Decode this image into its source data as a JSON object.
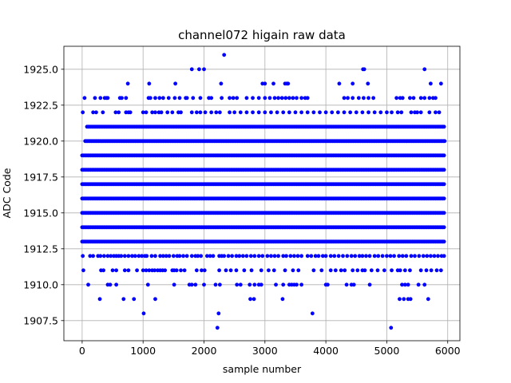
{
  "chart_data": {
    "type": "scatter",
    "title": "channel072 higain raw data",
    "xlabel": "sample number",
    "ylabel": "ADC Code",
    "xlim": [
      -300,
      6200
    ],
    "ylim": [
      1906.1,
      1926.6
    ],
    "xticks": [
      0,
      1000,
      2000,
      3000,
      4000,
      5000,
      6000
    ],
    "yticks": [
      1907.5,
      1910.0,
      1912.5,
      1915.0,
      1917.5,
      1920.0,
      1922.5,
      1925.0
    ],
    "xtick_labels": [
      "0",
      "1000",
      "2000",
      "3000",
      "4000",
      "5000",
      "6000"
    ],
    "ytick_labels": [
      "1907.5",
      "1910.0",
      "1912.5",
      "1915.0",
      "1917.5",
      "1920.0",
      "1922.5",
      "1925.0"
    ],
    "grid": true,
    "marker_color": "#0000ff",
    "n_samples": 6000,
    "dense_levels": [
      {
        "y": 1913,
        "from": 0,
        "to": 5950
      },
      {
        "y": 1914,
        "from": 0,
        "to": 5950
      },
      {
        "y": 1915,
        "from": 0,
        "to": 5950
      },
      {
        "y": 1916,
        "from": 0,
        "to": 5950
      },
      {
        "y": 1917,
        "from": 0,
        "to": 5950
      },
      {
        "y": 1918,
        "from": 0,
        "to": 5950
      },
      {
        "y": 1919,
        "from": 0,
        "to": 5950
      },
      {
        "y": 1920,
        "from": 50,
        "to": 5950
      },
      {
        "y": 1921,
        "from": 80,
        "to": 5950
      }
    ],
    "sparse_levels": [
      {
        "y": 1912,
        "x": [
          10,
          130,
          180,
          260,
          300,
          360,
          420,
          470,
          520,
          560,
          600,
          640,
          700,
          760,
          820,
          870,
          930,
          980,
          1030,
          1060,
          1140,
          1200,
          1280,
          1330,
          1380,
          1430,
          1500,
          1560,
          1600,
          1660,
          1720,
          1800,
          1860,
          1900,
          1950,
          2050,
          2100,
          2150,
          2250,
          2290,
          2330,
          2400,
          2460,
          2530,
          2580,
          2640,
          2700,
          2770,
          2830,
          2900,
          2960,
          3040,
          3100,
          3160,
          3220,
          3300,
          3350,
          3420,
          3480,
          3540,
          3600,
          3700,
          3760,
          3830,
          3880,
          3950,
          4000,
          4080,
          4140,
          4210,
          4280,
          4350,
          4420,
          4480,
          4550,
          4600,
          4660,
          4720,
          4800,
          4860,
          4930,
          5000,
          5060,
          5120,
          5200,
          5260,
          5320,
          5400,
          5460,
          5530,
          5600,
          5660,
          5720,
          5780,
          5840,
          5900,
          5940
        ]
      },
      {
        "y": 1911,
        "x": [
          20,
          310,
          350,
          500,
          560,
          700,
          760,
          900,
          1000,
          1050,
          1100,
          1150,
          1190,
          1240,
          1280,
          1320,
          1360,
          1480,
          1510,
          1550,
          1620,
          1680,
          1880,
          1960,
          2010,
          2250,
          2360,
          2440,
          2530,
          2660,
          2780,
          2940,
          3060,
          3150,
          3330,
          3460,
          3550,
          3800,
          3930,
          4080,
          4160,
          4250,
          4310,
          4440,
          4520,
          4600,
          4640,
          4750,
          4850,
          4960,
          5080,
          5180,
          5220,
          5300,
          5380,
          5560,
          5650,
          5730,
          5820,
          5890
        ]
      },
      {
        "y": 1910,
        "x": [
          100,
          420,
          460,
          560,
          1080,
          1510,
          1760,
          1800,
          1860,
          2000,
          2190,
          2260,
          2540,
          2600,
          2750,
          2830,
          2900,
          2940,
          3180,
          3300,
          3400,
          3440,
          3480,
          3520,
          3600,
          4000,
          4030,
          4340,
          4420,
          4460,
          4720,
          5250,
          5300,
          5350,
          5520,
          5620
        ]
      },
      {
        "y": 1909,
        "x": [
          290,
          680,
          850,
          1200,
          2760,
          2820,
          3290,
          5210,
          5280,
          5350,
          5390,
          5680
        ]
      },
      {
        "y": 1908,
        "x": [
          1010,
          2240,
          3780
        ]
      },
      {
        "y": 1907,
        "x": [
          2220,
          5070
        ]
      },
      {
        "y": 1922,
        "x": [
          10,
          180,
          230,
          340,
          550,
          600,
          720,
          760,
          790,
          1000,
          1050,
          1150,
          1200,
          1260,
          1300,
          1400,
          1480,
          1580,
          1620,
          1800,
          1880,
          1940,
          2020,
          2120,
          2200,
          2260,
          2420,
          2500,
          2600,
          2700,
          2800,
          2900,
          3000,
          3100,
          3200,
          3300,
          3400,
          3500,
          3600,
          3700,
          3800,
          3900,
          4000,
          4100,
          4200,
          4300,
          4400,
          4500,
          4600,
          4700,
          4800,
          4900,
          5000,
          5080,
          5180,
          5240,
          5400,
          5460,
          5500,
          5560,
          5700,
          5800,
          5860
        ]
      },
      {
        "y": 1923,
        "x": [
          40,
          210,
          300,
          370,
          400,
          420,
          620,
          650,
          720,
          1090,
          1120,
          1200,
          1270,
          1330,
          1420,
          1520,
          1600,
          1700,
          1720,
          1820,
          1940,
          2080,
          2120,
          2290,
          2420,
          2480,
          2540,
          2700,
          2800,
          2900,
          3000,
          3080,
          3160,
          3220,
          3280,
          3340,
          3400,
          3460,
          3520,
          3600,
          3660,
          3700,
          4300,
          4360,
          4440,
          4540,
          4620,
          4700,
          4780,
          5160,
          5220,
          5260,
          5380,
          5440,
          5560,
          5620,
          5700,
          5760,
          5800
        ]
      },
      {
        "y": 1924,
        "x": [
          750,
          1100,
          1530,
          2280,
          2960,
          3000,
          3140,
          3330,
          3360,
          3380,
          4220,
          4440,
          4690,
          5720,
          5890
        ]
      },
      {
        "y": 1925,
        "x": [
          1800,
          1920,
          2000,
          4610,
          4630,
          5620
        ]
      },
      {
        "y": 1926,
        "x": [
          2330
        ]
      }
    ]
  }
}
